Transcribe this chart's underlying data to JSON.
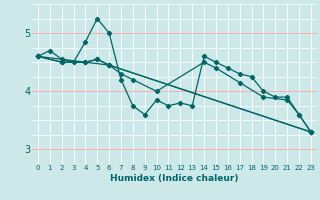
{
  "xlabel": "Humidex (Indice chaleur)",
  "ylabel": "",
  "xlim": [
    -0.5,
    23.5
  ],
  "ylim": [
    2.75,
    5.5
  ],
  "yticks": [
    3,
    4,
    5
  ],
  "xticks": [
    0,
    1,
    2,
    3,
    4,
    5,
    6,
    7,
    8,
    9,
    10,
    11,
    12,
    13,
    14,
    15,
    16,
    17,
    18,
    19,
    20,
    21,
    22,
    23
  ],
  "bg_color": "#cce8e8",
  "grid_color_v": "#ffffff",
  "grid_color_h_minor": "#ffffff",
  "grid_color_h_major": "#ffaaaa",
  "line_color": "#006666",
  "lines": [
    {
      "x": [
        0,
        1,
        2,
        3,
        4,
        5,
        6,
        7,
        8,
        9,
        10,
        11,
        12,
        13,
        14,
        15,
        16,
        17,
        18,
        19,
        20,
        21,
        22,
        23
      ],
      "y": [
        4.6,
        4.7,
        4.55,
        4.5,
        4.85,
        5.25,
        5.0,
        4.2,
        3.75,
        3.6,
        3.85,
        3.75,
        3.8,
        3.75,
        4.6,
        4.5,
        4.4,
        4.3,
        4.25,
        4.0,
        3.9,
        3.9,
        3.6,
        3.3
      ]
    },
    {
      "x": [
        0,
        2,
        4,
        5,
        6,
        7,
        8,
        10,
        14,
        15,
        17,
        19,
        21,
        22,
        23
      ],
      "y": [
        4.6,
        4.5,
        4.5,
        4.55,
        4.45,
        4.3,
        4.2,
        4.0,
        4.5,
        4.4,
        4.15,
        3.9,
        3.85,
        3.6,
        3.3
      ]
    },
    {
      "x": [
        0,
        2,
        4,
        5,
        6,
        23
      ],
      "y": [
        4.6,
        4.5,
        4.5,
        4.55,
        4.45,
        3.3
      ]
    },
    {
      "x": [
        0,
        6,
        23
      ],
      "y": [
        4.6,
        4.45,
        3.3
      ]
    }
  ]
}
